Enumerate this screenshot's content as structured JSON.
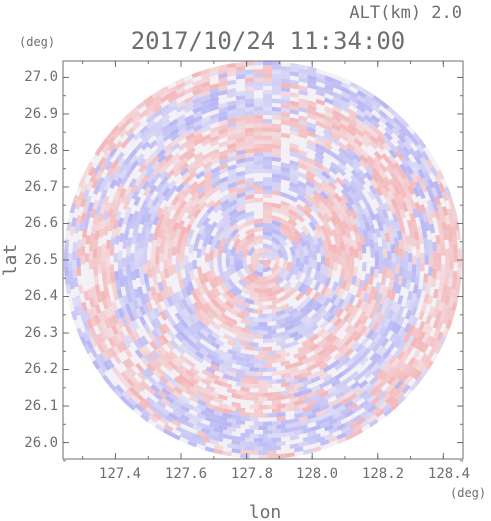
{
  "chart_data": {
    "type": "heatmap",
    "header": "ALT(km) 2.0",
    "title": "2017/10/24 11:34:00",
    "xlabel": "lon",
    "ylabel": "lat",
    "x_unit": "(deg)",
    "y_unit": "(deg)",
    "xlim": [
      127.24,
      128.46
    ],
    "ylim": [
      25.955,
      27.045
    ],
    "x_ticks": [
      "127.4",
      "127.6",
      "127.8",
      "128.0",
      "128.2",
      "128.4"
    ],
    "y_ticks": [
      "27.0",
      "26.9",
      "26.8",
      "26.7",
      "26.6",
      "26.5",
      "26.4",
      "26.3",
      "26.2",
      "26.1",
      "26.0"
    ],
    "center": [
      127.85,
      26.5
    ],
    "range_lat_deg": 0.545,
    "colors": {
      "positive": "#f4a7a7",
      "negative": "#a7a7f4",
      "axis": "#6e6e6e"
    }
  }
}
